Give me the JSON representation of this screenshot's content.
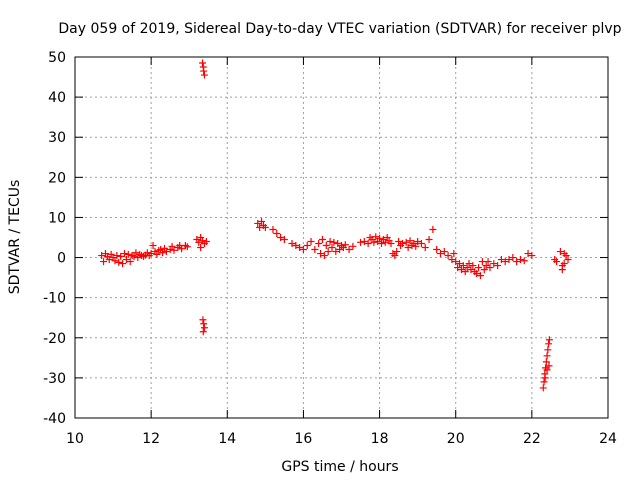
{
  "chart_data": {
    "type": "scatter",
    "title": "Day 059 of 2019, Sidereal Day-to-day VTEC variation (SDTVAR) for receiver plvp",
    "xlabel": "GPS time / hours",
    "ylabel": "SDTVAR / TECUs",
    "xlim": [
      10,
      24
    ],
    "ylim": [
      -40,
      50
    ],
    "xticks": [
      10,
      12,
      14,
      16,
      18,
      20,
      22,
      24
    ],
    "yticks": [
      50,
      40,
      30,
      20,
      10,
      0,
      -10,
      -20,
      -30,
      -40
    ],
    "grid": true,
    "marker": "+",
    "color": "#ff0000",
    "series": [
      {
        "name": "plvp",
        "points": [
          [
            10.7,
            0.5
          ],
          [
            10.75,
            -1.0
          ],
          [
            10.8,
            1.0
          ],
          [
            10.85,
            0.2
          ],
          [
            10.9,
            -0.5
          ],
          [
            10.95,
            0.8
          ],
          [
            11.0,
            0.0
          ],
          [
            11.05,
            -0.8
          ],
          [
            11.1,
            0.5
          ],
          [
            11.15,
            -1.2
          ],
          [
            11.2,
            0.3
          ],
          [
            11.25,
            -1.5
          ],
          [
            11.3,
            1.0
          ],
          [
            11.35,
            -0.5
          ],
          [
            11.4,
            0.8
          ],
          [
            11.45,
            -1.0
          ],
          [
            11.5,
            0.5
          ],
          [
            11.55,
            0.2
          ],
          [
            11.6,
            1.2
          ],
          [
            11.65,
            0.0
          ],
          [
            11.7,
            0.8
          ],
          [
            11.75,
            0.5
          ],
          [
            11.8,
            0.3
          ],
          [
            11.85,
            0.6
          ],
          [
            11.9,
            1.2
          ],
          [
            11.95,
            0.5
          ],
          [
            12.0,
            1.0
          ],
          [
            12.05,
            3.0
          ],
          [
            12.1,
            1.5
          ],
          [
            12.15,
            0.8
          ],
          [
            12.2,
            1.8
          ],
          [
            12.25,
            2.0
          ],
          [
            12.3,
            1.2
          ],
          [
            12.35,
            2.3
          ],
          [
            12.4,
            1.5
          ],
          [
            12.5,
            2.0
          ],
          [
            12.55,
            2.8
          ],
          [
            12.6,
            1.8
          ],
          [
            12.7,
            2.5
          ],
          [
            12.75,
            3.0
          ],
          [
            12.8,
            2.2
          ],
          [
            12.9,
            3.0
          ],
          [
            12.95,
            2.7
          ],
          [
            13.2,
            4.5
          ],
          [
            13.25,
            3.8
          ],
          [
            13.3,
            5.0
          ],
          [
            13.35,
            4.2
          ],
          [
            13.4,
            3.5
          ],
          [
            13.3,
            2.5
          ],
          [
            13.45,
            4.0
          ],
          [
            13.35,
            48.5
          ],
          [
            13.37,
            47.5
          ],
          [
            13.38,
            46.5
          ],
          [
            13.4,
            45.5
          ],
          [
            13.36,
            -15.5
          ],
          [
            13.38,
            -16.5
          ],
          [
            13.4,
            -17.5
          ],
          [
            13.37,
            -18.5
          ],
          [
            14.8,
            8.5
          ],
          [
            14.85,
            7.5
          ],
          [
            14.9,
            9.0
          ],
          [
            14.95,
            8.0
          ],
          [
            15.0,
            7.5
          ],
          [
            15.2,
            7.0
          ],
          [
            15.3,
            6.0
          ],
          [
            15.4,
            5.0
          ],
          [
            15.5,
            4.5
          ],
          [
            15.7,
            3.5
          ],
          [
            15.8,
            3.0
          ],
          [
            15.9,
            2.5
          ],
          [
            16.0,
            2.0
          ],
          [
            16.1,
            3.0
          ],
          [
            16.2,
            4.0
          ],
          [
            16.3,
            2.0
          ],
          [
            16.4,
            3.5
          ],
          [
            16.45,
            1.0
          ],
          [
            16.5,
            4.5
          ],
          [
            16.55,
            0.5
          ],
          [
            16.6,
            3.0
          ],
          [
            16.65,
            1.5
          ],
          [
            16.7,
            4.0
          ],
          [
            16.75,
            2.5
          ],
          [
            16.8,
            3.8
          ],
          [
            16.85,
            1.5
          ],
          [
            16.9,
            3.5
          ],
          [
            16.95,
            2.0
          ],
          [
            17.0,
            3.0
          ],
          [
            17.05,
            2.5
          ],
          [
            17.1,
            3.2
          ],
          [
            17.2,
            2.0
          ],
          [
            17.3,
            2.8
          ],
          [
            17.5,
            3.8
          ],
          [
            17.6,
            4.0
          ],
          [
            17.7,
            3.5
          ],
          [
            17.75,
            5.0
          ],
          [
            17.8,
            4.5
          ],
          [
            17.85,
            3.8
          ],
          [
            17.9,
            5.2
          ],
          [
            17.95,
            4.0
          ],
          [
            18.0,
            4.8
          ],
          [
            18.05,
            3.5
          ],
          [
            18.1,
            4.5
          ],
          [
            18.15,
            3.8
          ],
          [
            18.2,
            5.0
          ],
          [
            18.25,
            4.2
          ],
          [
            18.3,
            3.5
          ],
          [
            18.35,
            1.0
          ],
          [
            18.4,
            0.5
          ],
          [
            18.45,
            1.5
          ],
          [
            18.5,
            4.0
          ],
          [
            18.55,
            3.0
          ],
          [
            18.6,
            3.5
          ],
          [
            18.7,
            3.8
          ],
          [
            18.75,
            2.5
          ],
          [
            18.8,
            4.2
          ],
          [
            18.85,
            3.0
          ],
          [
            18.9,
            3.5
          ],
          [
            18.95,
            2.8
          ],
          [
            19.0,
            4.0
          ],
          [
            19.1,
            3.5
          ],
          [
            19.2,
            2.5
          ],
          [
            19.3,
            4.5
          ],
          [
            19.4,
            7.0
          ],
          [
            19.5,
            2.0
          ],
          [
            19.6,
            1.0
          ],
          [
            19.7,
            1.5
          ],
          [
            19.8,
            0.5
          ],
          [
            19.9,
            -0.5
          ],
          [
            19.95,
            1.0
          ],
          [
            20.0,
            -1.0
          ],
          [
            20.05,
            -2.5
          ],
          [
            20.1,
            -1.5
          ],
          [
            20.15,
            -3.0
          ],
          [
            20.2,
            -2.0
          ],
          [
            20.25,
            -3.5
          ],
          [
            20.3,
            -2.5
          ],
          [
            20.35,
            -1.5
          ],
          [
            20.4,
            -3.0
          ],
          [
            20.45,
            -2.0
          ],
          [
            20.5,
            -3.5
          ],
          [
            20.55,
            -4.0
          ],
          [
            20.6,
            -2.5
          ],
          [
            20.65,
            -4.5
          ],
          [
            20.7,
            -1.0
          ],
          [
            20.75,
            -3.0
          ],
          [
            20.8,
            -2.0
          ],
          [
            20.85,
            -1.0
          ],
          [
            20.9,
            -2.5
          ],
          [
            21.0,
            -1.5
          ],
          [
            21.1,
            -2.0
          ],
          [
            21.2,
            -0.5
          ],
          [
            21.3,
            -1.0
          ],
          [
            21.4,
            -0.5
          ],
          [
            21.5,
            0.0
          ],
          [
            21.6,
            -1.0
          ],
          [
            21.7,
            -0.5
          ],
          [
            21.8,
            -0.8
          ],
          [
            21.9,
            1.0
          ],
          [
            22.0,
            0.5
          ],
          [
            22.3,
            -32.5
          ],
          [
            22.32,
            -31.0
          ],
          [
            22.34,
            -29.0
          ],
          [
            22.36,
            -27.5
          ],
          [
            22.38,
            -26.0
          ],
          [
            22.4,
            -24.5
          ],
          [
            22.42,
            -23.0
          ],
          [
            22.44,
            -21.5
          ],
          [
            22.46,
            -20.5
          ],
          [
            22.45,
            -27.0
          ],
          [
            22.35,
            -30.0
          ],
          [
            22.4,
            -28.0
          ],
          [
            22.6,
            -0.5
          ],
          [
            22.65,
            -1.0
          ],
          [
            22.75,
            1.5
          ],
          [
            22.8,
            -3.0
          ],
          [
            22.85,
            -1.5
          ],
          [
            22.9,
            0.5
          ],
          [
            22.95,
            -0.5
          ],
          [
            22.8,
            -2.0
          ],
          [
            22.85,
            1.0
          ]
        ]
      }
    ]
  }
}
